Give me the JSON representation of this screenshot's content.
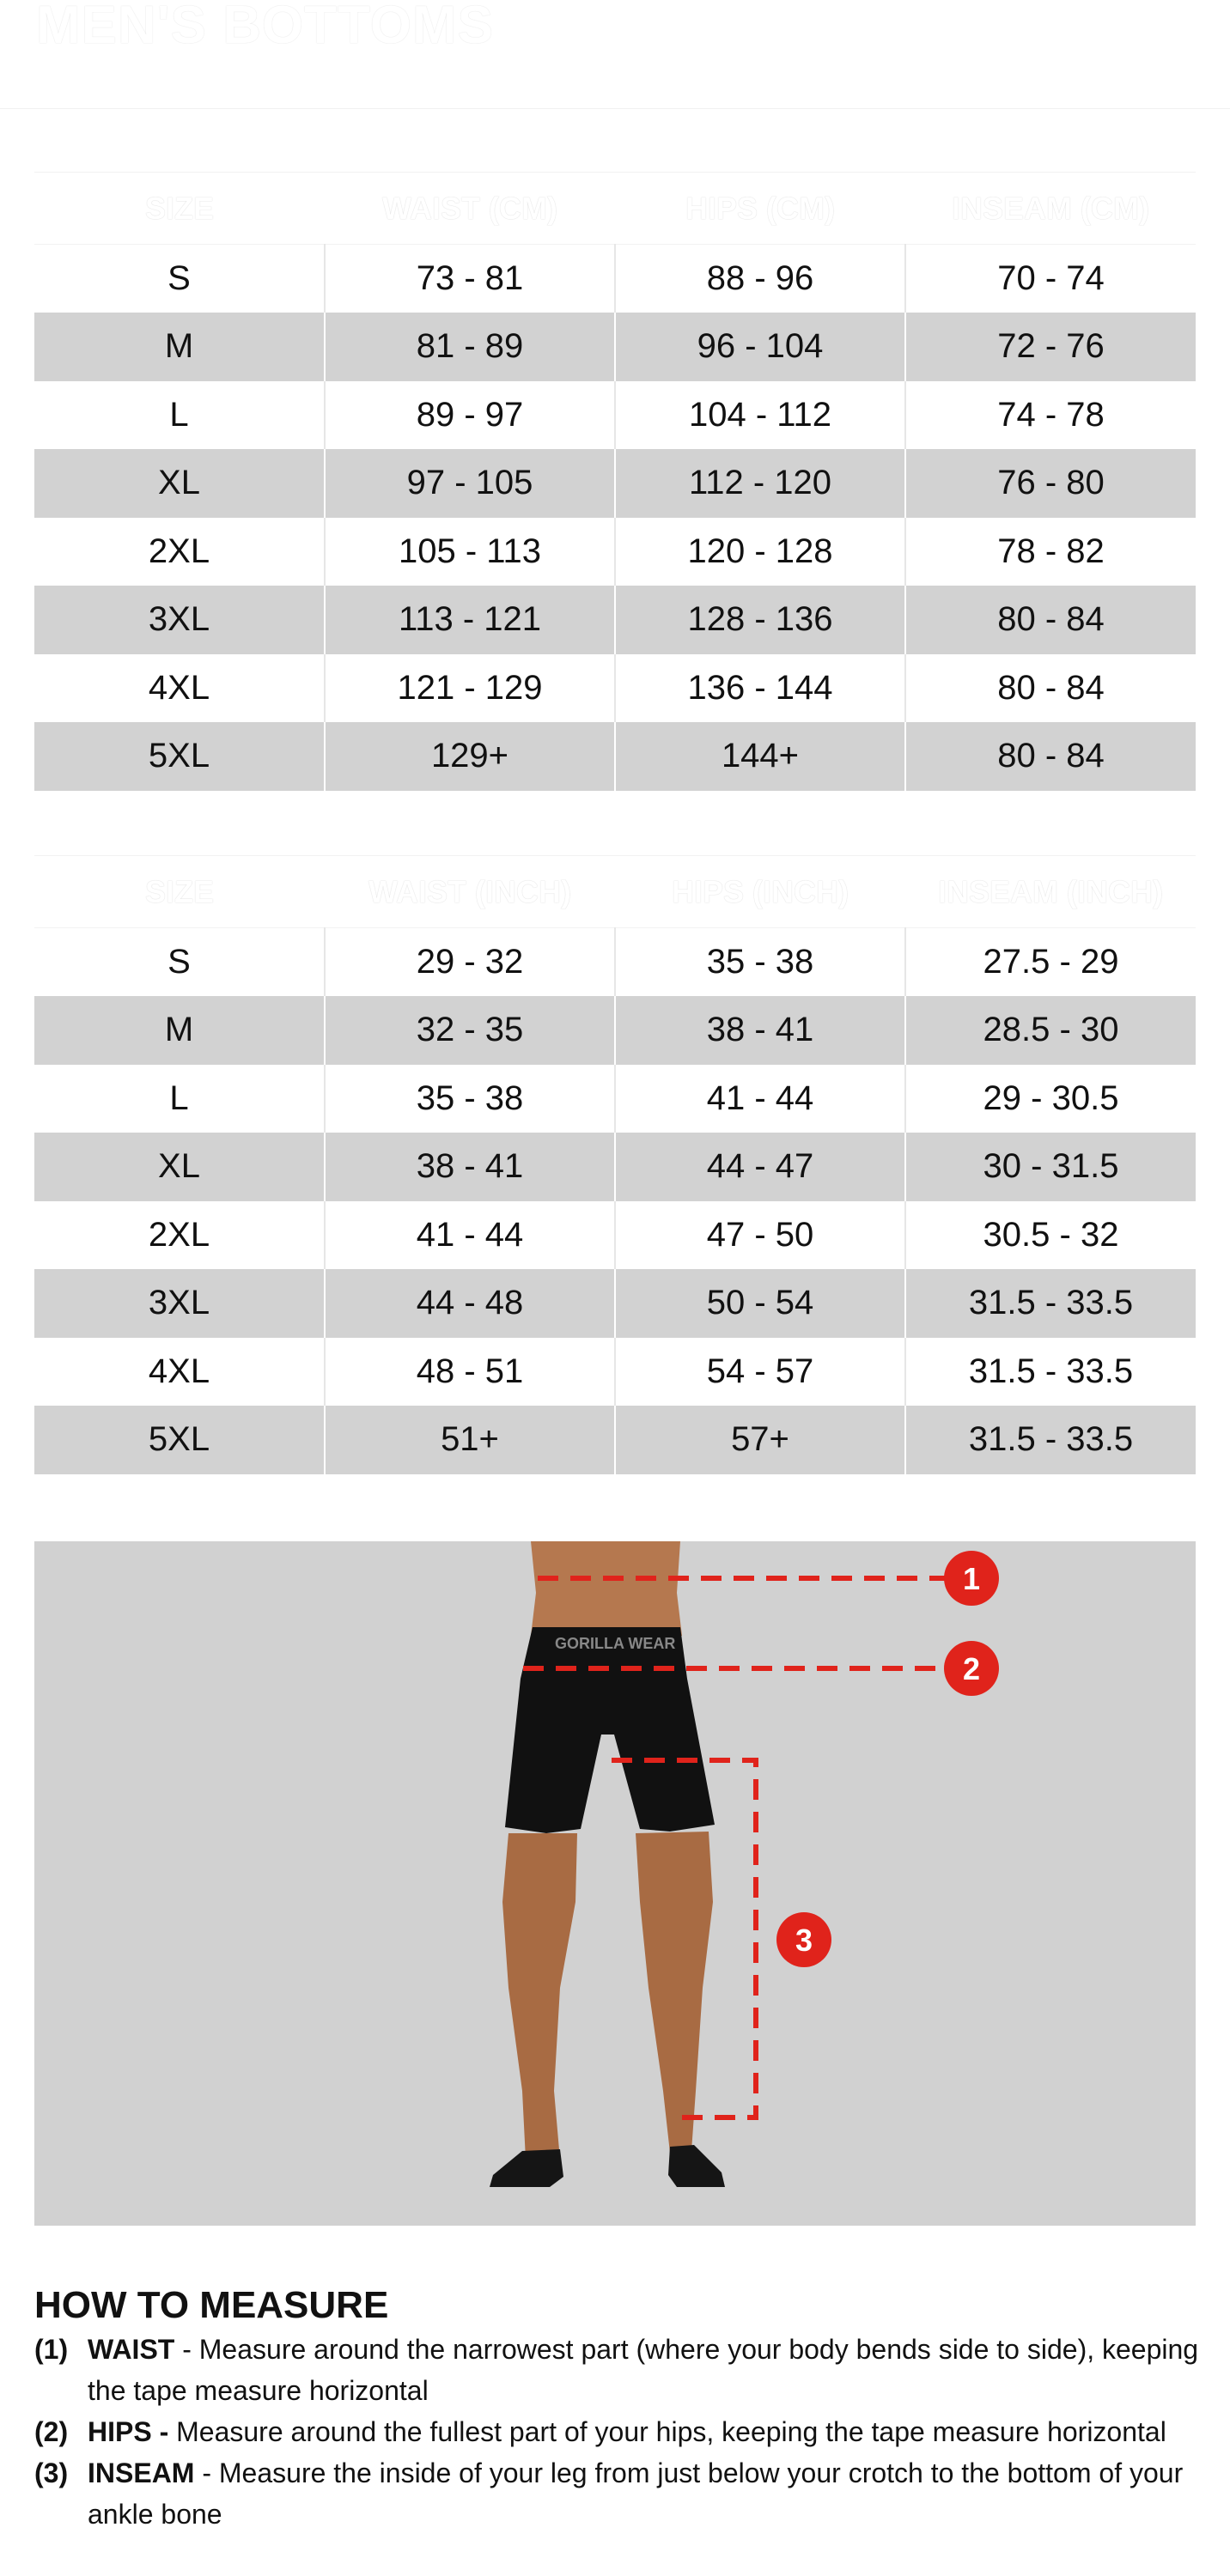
{
  "title": "MEN'S BOTTOMS",
  "table_cm": {
    "headers": [
      "SIZE",
      "WAIST (CM)",
      "HIPS (CM)",
      "INSEAM (CM)"
    ],
    "rows": [
      [
        "S",
        "73 - 81",
        "88 - 96",
        "70 - 74"
      ],
      [
        "M",
        "81 - 89",
        "96 - 104",
        "72 - 76"
      ],
      [
        "L",
        "89 - 97",
        "104 - 112",
        "74 - 78"
      ],
      [
        "XL",
        "97 - 105",
        "112 - 120",
        "76 - 80"
      ],
      [
        "2XL",
        "105 - 113",
        "120 - 128",
        "78 - 82"
      ],
      [
        "3XL",
        "113 - 121",
        "128 - 136",
        "80 - 84"
      ],
      [
        "4XL",
        "121 - 129",
        "136 - 144",
        "80 - 84"
      ],
      [
        "5XL",
        "129+",
        "144+",
        "80 - 84"
      ]
    ]
  },
  "table_inch": {
    "headers": [
      "SIZE",
      "WAIST (INCH)",
      "HIPS (INCH)",
      "INSEAM (INCH)"
    ],
    "rows": [
      [
        "S",
        "29 - 32",
        "35 - 38",
        "27.5 - 29"
      ],
      [
        "M",
        "32 - 35",
        "38 - 41",
        "28.5 - 30"
      ],
      [
        "L",
        "35 - 38",
        "41 - 44",
        "29 - 30.5"
      ],
      [
        "XL",
        "38 - 41",
        "44 - 47",
        "30 - 31.5"
      ],
      [
        "2XL",
        "41 - 44",
        "47 - 50",
        "30.5 - 32"
      ],
      [
        "3XL",
        "44 - 48",
        "50 - 54",
        "31.5 - 33.5"
      ],
      [
        "4XL",
        "48 - 51",
        "54 - 57",
        "31.5 - 33.5"
      ],
      [
        "5XL",
        "51+",
        "57+",
        "31.5 - 33.5"
      ]
    ]
  },
  "figure": {
    "markers": [
      "1",
      "2",
      "3"
    ],
    "waistband_logo": "GORILLA WEAR",
    "accent": "#e0231b",
    "background": "#d1d1d1"
  },
  "how_to": {
    "heading": "HOW TO MEASURE",
    "items": [
      {
        "num": "(1)",
        "term": "WAIST",
        "text": " - Measure around the narrowest part (where your body bends side to side), keeping the tape measure horizontal"
      },
      {
        "num": "(2)",
        "term": "HIPS -",
        "text": " Measure around the fullest part of your hips, keeping the tape measure horizontal"
      },
      {
        "num": "(3)",
        "term": "INSEAM",
        "text": " - Measure the inside of your leg from just below your crotch to the bottom of your ankle bone"
      }
    ]
  }
}
